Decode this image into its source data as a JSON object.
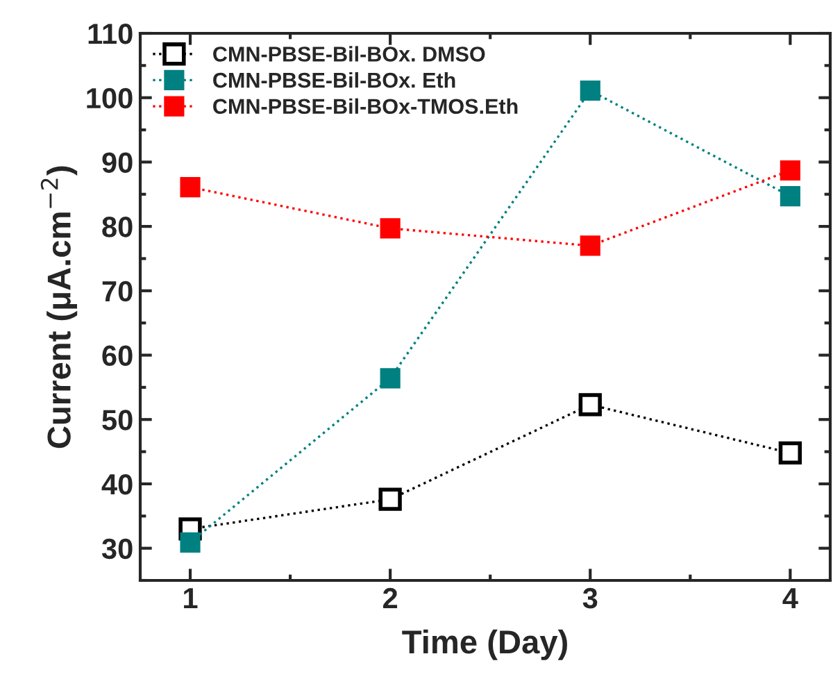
{
  "chart_data": {
    "type": "line",
    "xlabel": "Time (Day)",
    "ylabel": "Current (μA.cm$^{−2}$)",
    "x": [
      1,
      2,
      3,
      4
    ],
    "xlim": [
      0.75,
      4.2
    ],
    "xticks": [
      1,
      2,
      3,
      4
    ],
    "ylim": [
      25,
      110
    ],
    "yticks": [
      30,
      40,
      50,
      60,
      70,
      80,
      90,
      100,
      110
    ],
    "marker": "square",
    "line_style": "dotted",
    "legend": "top left",
    "grid": false,
    "series": [
      {
        "name": "CMN-PBSE-Bil-BOx. DMSO",
        "color": "#000000",
        "values": [
          33.0,
          37.6,
          52.3,
          44.8
        ]
      },
      {
        "name": "CMN-PBSE-Bil-BOx. Eth",
        "color": "#008080",
        "values": [
          30.9,
          56.4,
          101.1,
          84.7
        ]
      },
      {
        "name": "CMN-PBSE-Bil-BOx-TMOS.Eth",
        "color": "#ff0000",
        "values": [
          86.1,
          79.7,
          77.0,
          88.7
        ]
      }
    ]
  }
}
